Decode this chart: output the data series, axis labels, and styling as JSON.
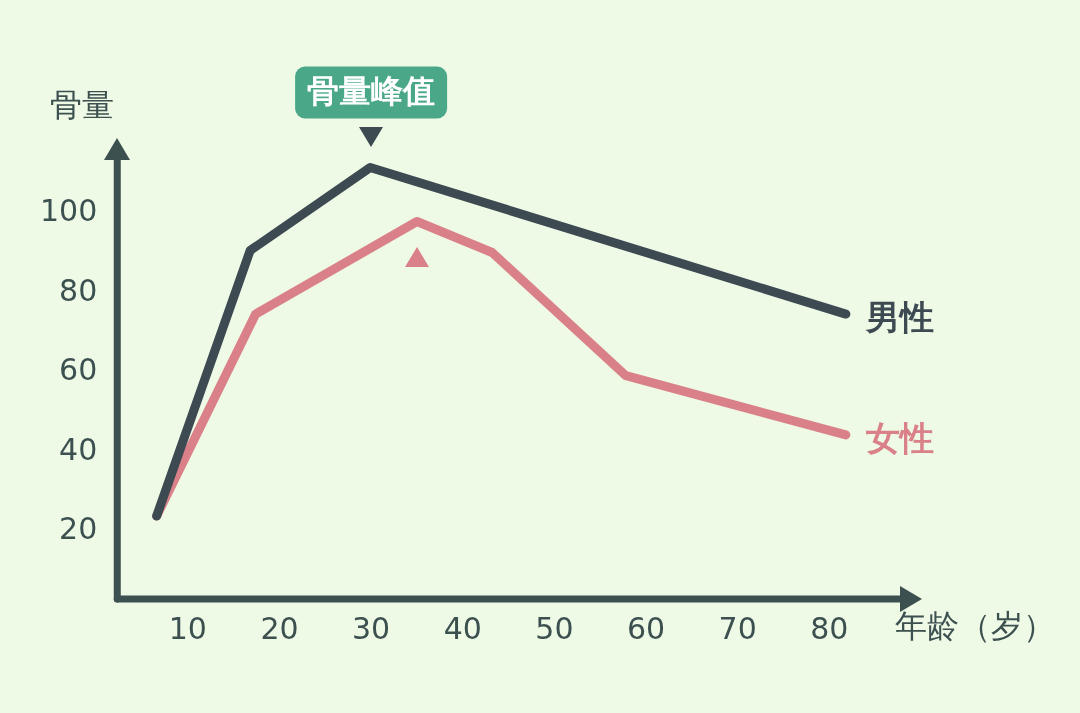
{
  "chart_data": {
    "type": "line",
    "xlabel": "年龄（岁）",
    "ylabel": "骨量",
    "xlim": [
      2.3,
      88.8
    ],
    "xticks": [
      10,
      20,
      30,
      40,
      50,
      60,
      70,
      80
    ],
    "ylim": [
      3,
      116
    ],
    "yticks": [
      20,
      40,
      60,
      80,
      100
    ],
    "grid": false,
    "legend": false,
    "marker": "none",
    "line_style": "solid",
    "series": [
      {
        "name": "男性",
        "color": "#3d4a52",
        "x": [
          6.6,
          16.8,
          29.9,
          81.8
        ],
        "values": [
          23.9,
          90.7,
          111.6,
          74.7
        ]
      },
      {
        "name": "女性",
        "color": "#d98088",
        "x": [
          6.6,
          17.4,
          35,
          43.2,
          57.8,
          81.8
        ],
        "values": [
          23.9,
          74.7,
          98,
          90.2,
          59.2,
          44.3
        ]
      }
    ],
    "annotations": [
      {
        "text": "骨量峰值",
        "x": 30,
        "y": 111.6
      }
    ]
  }
}
